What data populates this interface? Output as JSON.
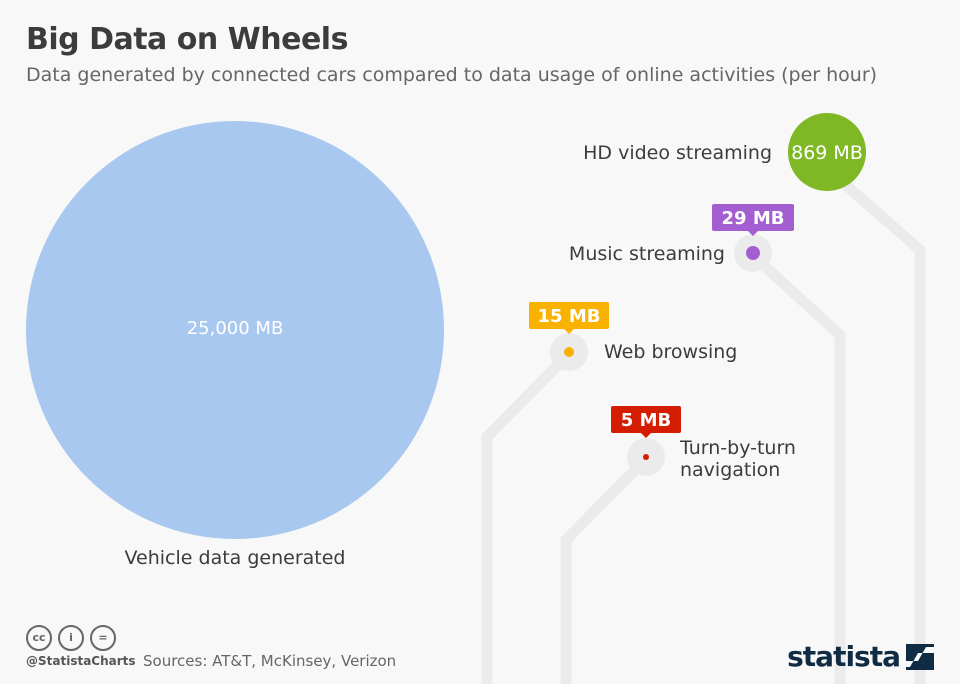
{
  "title": "Big Data on Wheels",
  "subtitle": "Data generated by connected cars compared to data usage of online activities (per hour)",
  "chart_data": {
    "type": "bubble",
    "title": "Big Data on Wheels",
    "subtitle": "Data generated by connected cars compared to data usage of online activities (per hour)",
    "unit": "MB per hour",
    "items": [
      {
        "label": "Vehicle data generated",
        "value": 25000,
        "value_label": "25,000 MB",
        "color": "#a8c8f0"
      },
      {
        "label": "HD video streaming",
        "value": 869,
        "value_label": "869 MB",
        "color": "#7fb825"
      },
      {
        "label": "Music streaming",
        "value": 29,
        "value_label": "29 MB",
        "color": "#a35fd1"
      },
      {
        "label": "Web browsing",
        "value": 15,
        "value_label": "15 MB",
        "color": "#f9b200"
      },
      {
        "label": "Turn-by-turn navigation",
        "value": 5,
        "value_label": "5 MB",
        "color": "#d41c00",
        "label_lines": [
          "Turn-by-turn",
          "navigation"
        ]
      }
    ]
  },
  "footer": {
    "handle": "@StatistaCharts",
    "sources": "Sources: AT&T, McKinsey, Verizon",
    "license_icons": [
      "cc-icon",
      "by-icon",
      "nd-icon"
    ],
    "brand": "statista"
  }
}
